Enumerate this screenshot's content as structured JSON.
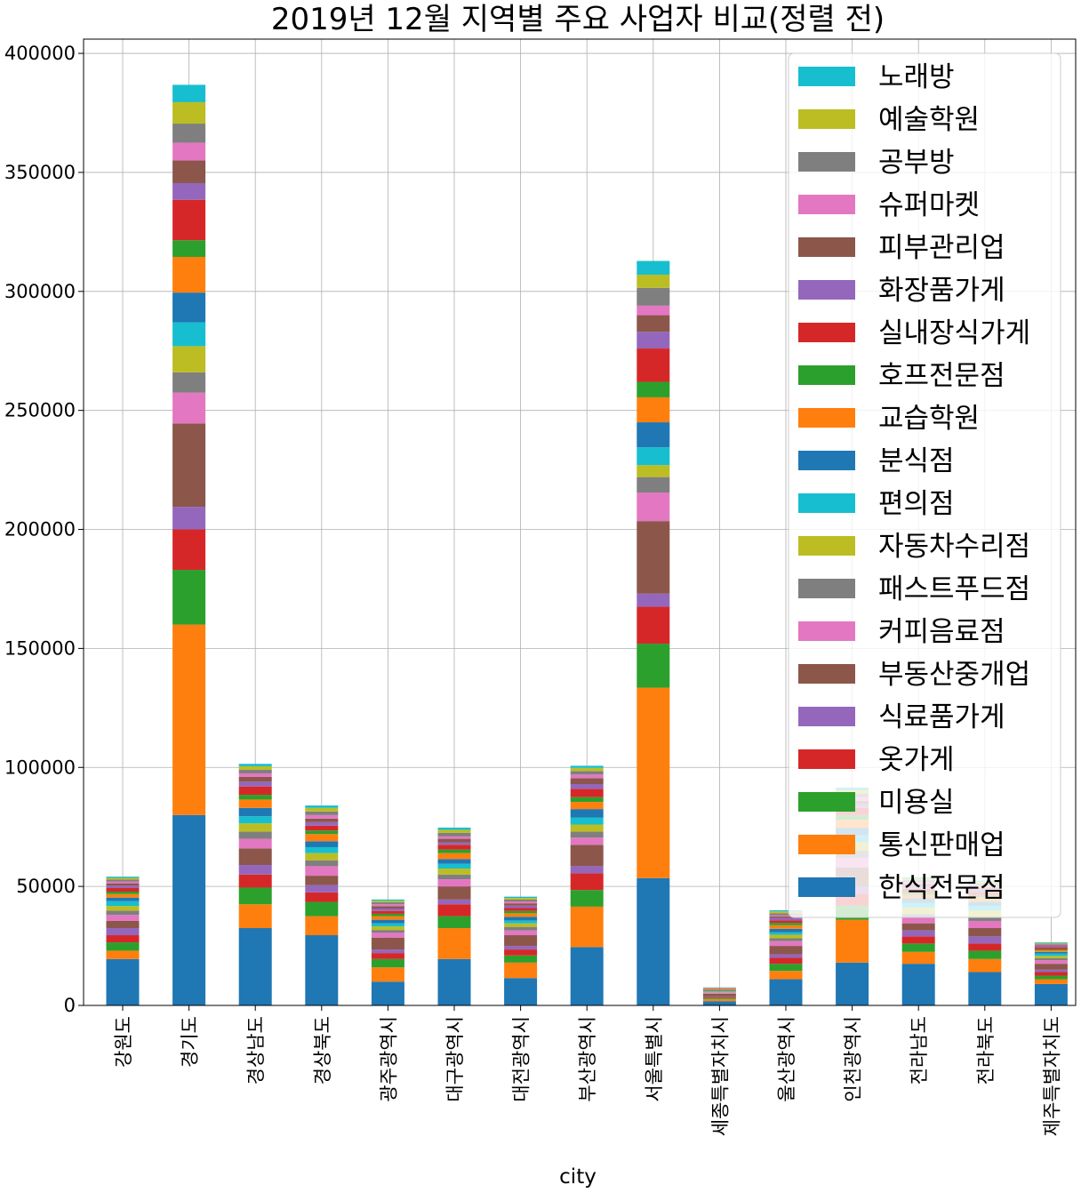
{
  "chart_data": {
    "type": "bar",
    "stacked": true,
    "title": "2019년 12월 지역별 주요 사업자 비교(정렬 전)",
    "xlabel": "city",
    "ylabel": "",
    "ylim": [
      0,
      406000
    ],
    "yticks": [
      0,
      50000,
      100000,
      150000,
      200000,
      250000,
      300000,
      350000,
      400000
    ],
    "grid": true,
    "legend_position": "top-right",
    "categories": [
      "강원도",
      "경기도",
      "경상남도",
      "경상북도",
      "광주광역시",
      "대구광역시",
      "대전광역시",
      "부산광역시",
      "서울특별시",
      "세종특별자치시",
      "울산광역시",
      "인천광역시",
      "전라남도",
      "전라북도",
      "제주특별자치도"
    ],
    "series": [
      {
        "name": "한식전문점",
        "color": "#1f77b4",
        "values": [
          19500,
          80000,
          32500,
          29500,
          10000,
          19500,
          11500,
          24500,
          53500,
          1800,
          11000,
          18000,
          17500,
          14000,
          9000
        ]
      },
      {
        "name": "통신판매업",
        "color": "#ff7f0e",
        "values": [
          3500,
          80000,
          10000,
          8000,
          6000,
          13000,
          6500,
          17000,
          80000,
          900,
          3500,
          18000,
          5000,
          5500,
          2000
        ]
      },
      {
        "name": "미용실",
        "color": "#2ca02c",
        "values": [
          3500,
          23000,
          7000,
          6000,
          3500,
          5000,
          3000,
          7000,
          18500,
          500,
          3000,
          6000,
          3500,
          3500,
          1500
        ]
      },
      {
        "name": "옷가게",
        "color": "#d62728",
        "values": [
          3000,
          17000,
          5500,
          4000,
          2500,
          5000,
          2500,
          7000,
          15500,
          400,
          2500,
          5000,
          3000,
          3000,
          1500
        ]
      },
      {
        "name": "식료품가게",
        "color": "#9467bd",
        "values": [
          3000,
          9500,
          4000,
          3000,
          1500,
          2000,
          1500,
          3000,
          5500,
          300,
          1500,
          3000,
          2500,
          3000,
          1000
        ]
      },
      {
        "name": "부동산중개업",
        "color": "#8c564b",
        "values": [
          3000,
          35000,
          7000,
          4000,
          5000,
          5500,
          4500,
          9000,
          30500,
          1000,
          3500,
          8000,
          3000,
          3500,
          2500
        ]
      },
      {
        "name": "커피음료점",
        "color": "#e377c2",
        "values": [
          2500,
          13000,
          4000,
          4000,
          2000,
          3000,
          2000,
          3000,
          12000,
          400,
          2000,
          4000,
          2500,
          3000,
          1500
        ]
      },
      {
        "name": "패스트푸드점",
        "color": "#7f7f7f",
        "values": [
          1800,
          8500,
          3000,
          2500,
          1200,
          2000,
          1500,
          2500,
          6500,
          200,
          1200,
          3000,
          1500,
          1800,
          800
        ]
      },
      {
        "name": "자동차수리점",
        "color": "#bcbd22",
        "values": [
          2000,
          11000,
          3500,
          3000,
          1500,
          2500,
          1500,
          3000,
          5000,
          300,
          1500,
          3500,
          2500,
          2500,
          1000
        ]
      },
      {
        "name": "편의점",
        "color": "#17becf",
        "values": [
          2000,
          10000,
          3000,
          2500,
          1300,
          2000,
          1200,
          3000,
          7500,
          200,
          1000,
          3000,
          2000,
          2000,
          1000
        ]
      },
      {
        "name": "분식점",
        "color": "#1f77b4",
        "values": [
          1500,
          12500,
          3500,
          2500,
          1500,
          2000,
          1500,
          3500,
          10500,
          300,
          1500,
          3000,
          2000,
          1800,
          700
        ]
      },
      {
        "name": "교습학원",
        "color": "#ff7f0e",
        "values": [
          1500,
          15000,
          3500,
          3000,
          1500,
          2500,
          1500,
          3000,
          10500,
          400,
          1500,
          3500,
          1500,
          1800,
          600
        ]
      },
      {
        "name": "호프전문점",
        "color": "#2ca02c",
        "values": [
          1000,
          7000,
          2000,
          1500,
          1000,
          1500,
          1000,
          2000,
          6500,
          100,
          1000,
          2000,
          1000,
          1000,
          500
        ]
      },
      {
        "name": "실내장식가게",
        "color": "#d62728",
        "values": [
          1500,
          17000,
          3500,
          2000,
          1200,
          2000,
          1200,
          3500,
          14000,
          200,
          1000,
          3000,
          1500,
          1200,
          700
        ]
      },
      {
        "name": "화장품가게",
        "color": "#9467bd",
        "values": [
          1000,
          7000,
          2000,
          1500,
          1000,
          1000,
          1000,
          2000,
          7000,
          100,
          1000,
          1500,
          1000,
          1000,
          500
        ]
      },
      {
        "name": "피부관리업",
        "color": "#8c564b",
        "values": [
          1000,
          9500,
          2000,
          1500,
          1000,
          1500,
          1000,
          2500,
          7000,
          100,
          700,
          1500,
          1000,
          1000,
          500
        ]
      },
      {
        "name": "슈퍼마켓",
        "color": "#e377c2",
        "values": [
          800,
          7500,
          1500,
          1500,
          800,
          1000,
          800,
          1500,
          4000,
          100,
          500,
          1500,
          800,
          800,
          300
        ]
      },
      {
        "name": "공부방",
        "color": "#7f7f7f",
        "values": [
          800,
          8000,
          1500,
          1500,
          800,
          1500,
          800,
          1500,
          7500,
          100,
          800,
          1500,
          800,
          800,
          300
        ]
      },
      {
        "name": "예술학원",
        "color": "#bcbd22",
        "values": [
          700,
          9000,
          1500,
          1500,
          700,
          1300,
          700,
          1300,
          5500,
          100,
          800,
          1500,
          700,
          800,
          300
        ]
      },
      {
        "name": "노래방",
        "color": "#17becf",
        "values": [
          500,
          7300,
          1000,
          1000,
          500,
          900,
          500,
          900,
          5800,
          100,
          500,
          1000,
          500,
          500,
          300
        ]
      }
    ]
  }
}
